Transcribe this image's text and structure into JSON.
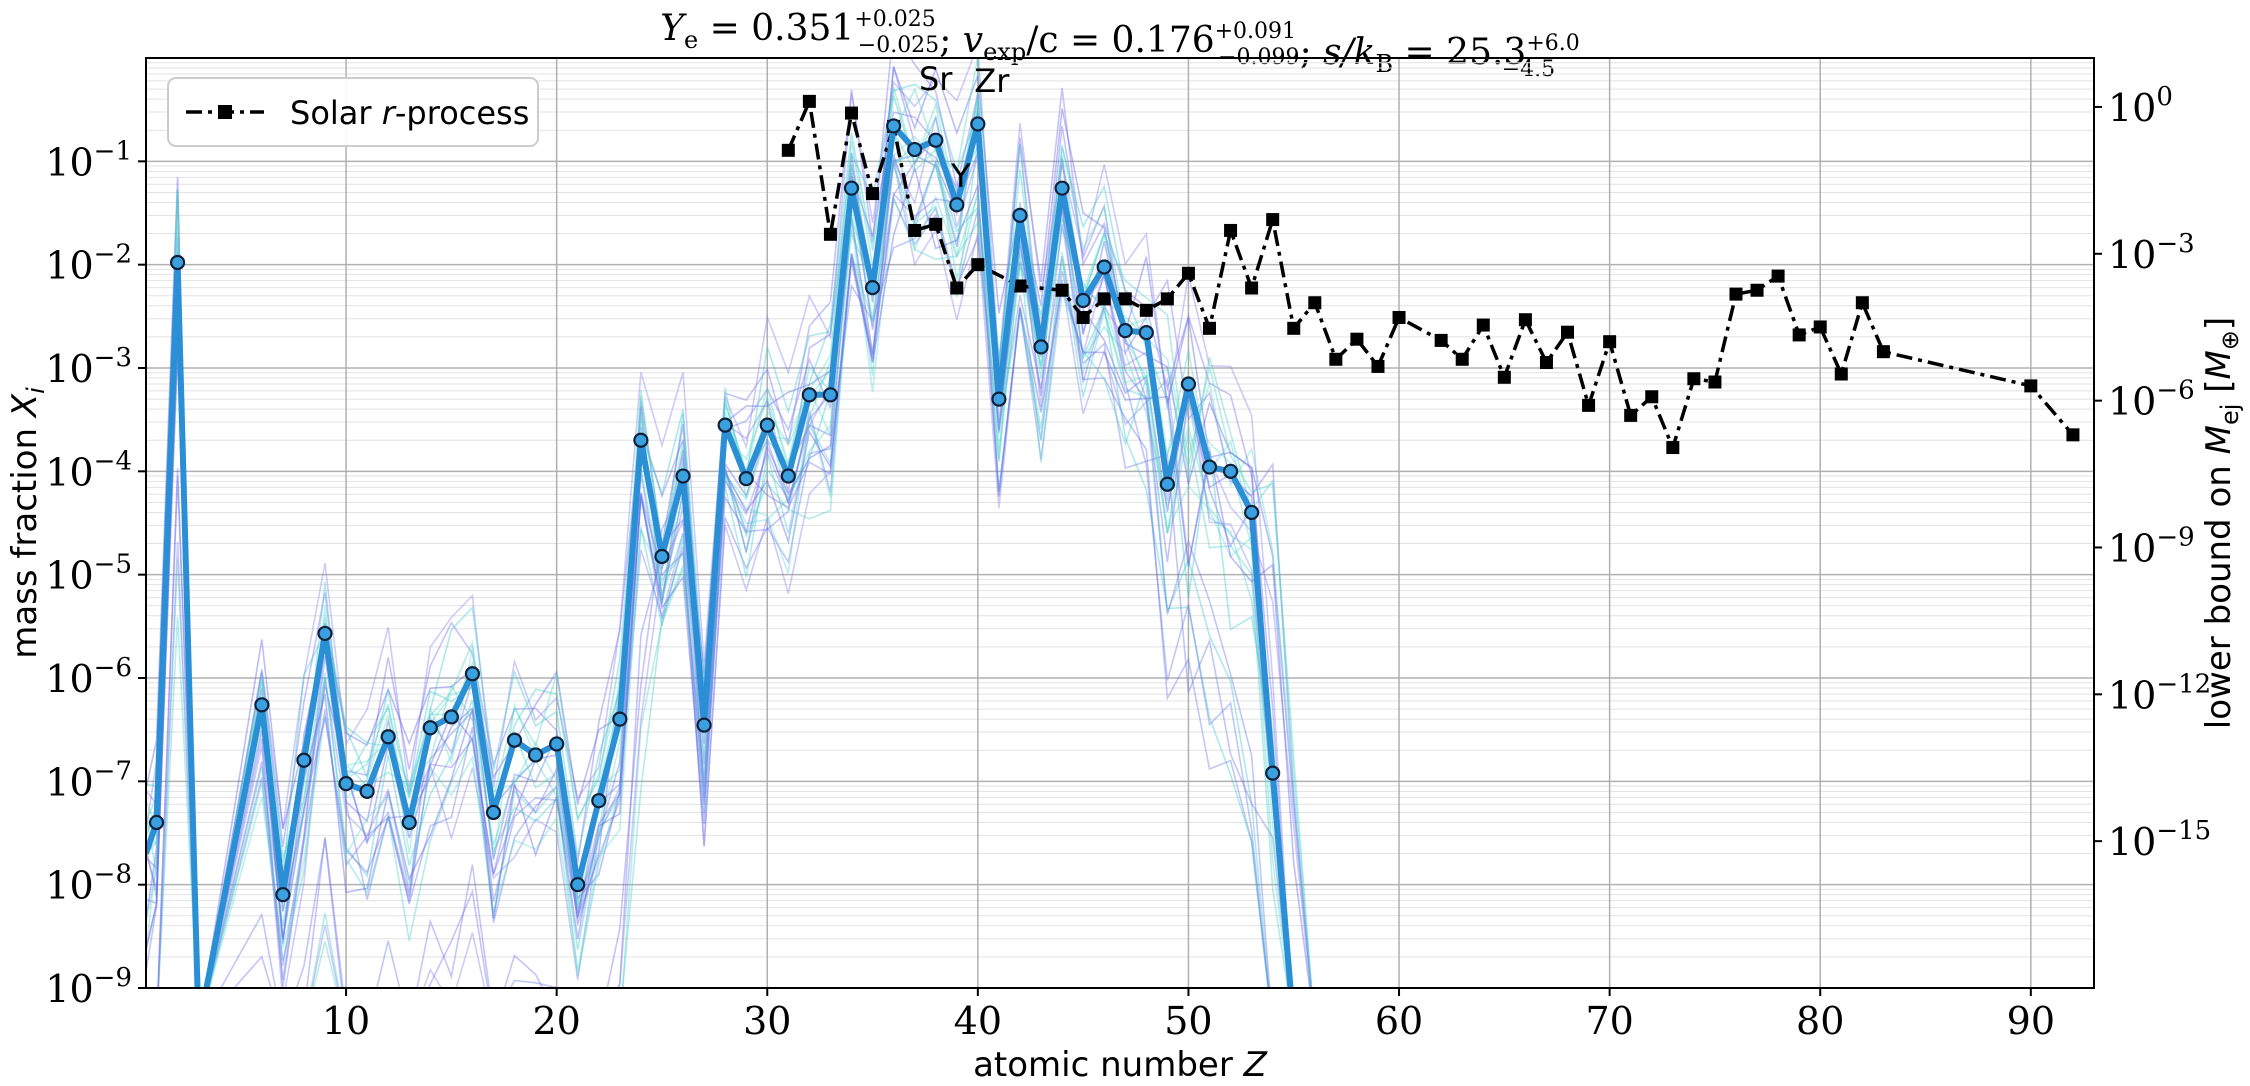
{
  "chart_data": {
    "type": "line",
    "title": "Ye = 0.351 (+0.025/−0.025);   vexp/c = 0.176 (+0.091/−0.099);   s/kB = 25.3 (+6.0/−4.5)",
    "title_parts": [
      {
        "lhs": "Y",
        "sub": "e",
        "rhs": " = 0.351",
        "sup": "+0.025",
        "inf": "−0.025"
      },
      {
        "lhs": "v",
        "sub": "exp",
        "rhs": "/c = 0.176",
        "sup": "+0.091",
        "inf": "−0.099"
      },
      {
        "lhs": "s/k",
        "sub": "B",
        "rhs": " = 25.3",
        "sup": "+6.0",
        "inf": "−4.5"
      }
    ],
    "xlabel": "atomic number Z",
    "ylabel": "mass fraction Xi",
    "y2label": "lower bound on Mej [M⊕]",
    "xlim": [
      0.5,
      93
    ],
    "ylim": [
      1e-09,
      1.0
    ],
    "yscale": "log",
    "y2lim": [
      1e-18,
      10
    ],
    "y2scale": "log",
    "grid": true,
    "x_ticks": [
      10,
      20,
      30,
      40,
      50,
      60,
      70,
      80,
      90
    ],
    "y_ticks": [
      {
        "value": 0.1,
        "base": "10",
        "exp": "−1"
      },
      {
        "value": 0.01,
        "base": "10",
        "exp": "−2"
      },
      {
        "value": 0.001,
        "base": "10",
        "exp": "−3"
      },
      {
        "value": 0.0001,
        "base": "10",
        "exp": "−4"
      },
      {
        "value": 1e-05,
        "base": "10",
        "exp": "−5"
      },
      {
        "value": 1e-06,
        "base": "10",
        "exp": "−6"
      },
      {
        "value": 1e-07,
        "base": "10",
        "exp": "−7"
      },
      {
        "value": 1e-08,
        "base": "10",
        "exp": "−8"
      },
      {
        "value": 1e-09,
        "base": "10",
        "exp": "−9"
      }
    ],
    "y2_ticks": [
      {
        "value": 1,
        "base": "10",
        "exp": "0"
      },
      {
        "value": 0.001,
        "base": "10",
        "exp": "−3"
      },
      {
        "value": 1e-06,
        "base": "10",
        "exp": "−6"
      },
      {
        "value": 1e-09,
        "base": "10",
        "exp": "−9"
      },
      {
        "value": 1e-12,
        "base": "10",
        "exp": "−12"
      },
      {
        "value": 1e-15,
        "base": "10",
        "exp": "−15"
      }
    ],
    "legend": {
      "position": "top-left",
      "entries": [
        {
          "label": "Solar r-process"
        }
      ]
    },
    "annotations": [
      {
        "text": "Sr",
        "z": 38
      },
      {
        "text": "Y",
        "z": 39
      },
      {
        "text": "Zr",
        "z": 40
      }
    ],
    "colors": {
      "main": "#2b8fd6",
      "solar": "#000000",
      "ensemble_a": "#6a6ae6",
      "ensemble_b": "#5fd8d0",
      "grid": "#b0b0b0"
    },
    "series": [
      {
        "role": "model",
        "axis": "left",
        "x": [
          1,
          2,
          3,
          6,
          7,
          8,
          9,
          10,
          11,
          12,
          13,
          14,
          15,
          16,
          17,
          18,
          19,
          20,
          21,
          22,
          23,
          24,
          25,
          26,
          27,
          28,
          29,
          30,
          31,
          32,
          33,
          34,
          35,
          36,
          37,
          38,
          39,
          40,
          41,
          42,
          43,
          44,
          45,
          46,
          47,
          48,
          49,
          50,
          51,
          52,
          53,
          54
        ],
        "y": [
          4e-08,
          0.0105,
          1e-10,
          5.5e-07,
          8e-09,
          1.6e-07,
          2.7e-06,
          9.5e-08,
          8e-08,
          2.7e-07,
          4e-08,
          3.3e-07,
          4.2e-07,
          1.1e-06,
          5e-08,
          2.5e-07,
          1.8e-07,
          2.3e-07,
          1e-08,
          6.5e-08,
          4e-07,
          0.0002,
          1.5e-05,
          9e-05,
          3.5e-07,
          0.00028,
          8.5e-05,
          0.00028,
          9e-05,
          0.00055,
          0.00055,
          0.055,
          0.006,
          0.22,
          0.13,
          0.16,
          0.038,
          0.23,
          0.0005,
          0.03,
          0.0016,
          0.055,
          0.0045,
          0.0095,
          0.0023,
          0.0022,
          7.5e-05,
          0.0007,
          0.00011,
          0.0001,
          4e-05,
          1.2e-07
        ]
      },
      {
        "role": "solar",
        "name": "Solar r-process",
        "axis": "right",
        "x": [
          31,
          32,
          33,
          34,
          35,
          36,
          37,
          38,
          39,
          40,
          42,
          44,
          45,
          46,
          47,
          48,
          49,
          50,
          51,
          52,
          53,
          54,
          55,
          56,
          57,
          58,
          59,
          60,
          62,
          63,
          64,
          65,
          66,
          67,
          68,
          69,
          70,
          71,
          72,
          73,
          74,
          75,
          76,
          77,
          78,
          79,
          80,
          81,
          82,
          83,
          90,
          92
        ],
        "y": [
          0.13,
          1.3,
          0.0025,
          0.75,
          0.017,
          0.4,
          0.003,
          0.004,
          0.0002,
          0.0006,
          0.00022,
          0.00018,
          5e-05,
          0.00012,
          0.00012,
          7e-05,
          0.00012,
          0.0004,
          3e-05,
          0.003,
          0.0002,
          0.005,
          3e-05,
          0.0001,
          7e-06,
          1.8e-05,
          5e-06,
          5e-05,
          1.7e-05,
          7e-06,
          3.5e-05,
          3e-06,
          4.5e-05,
          6e-06,
          2.5e-05,
          8e-07,
          1.6e-05,
          5e-07,
          1.2e-06,
          1.1e-07,
          2.8e-06,
          2.4e-06,
          0.00015,
          0.00018,
          0.00035,
          2.2e-05,
          3.2e-05,
          3.5e-06,
          0.0001,
          1e-05,
          2e-06,
          2e-07
        ]
      }
    ]
  }
}
